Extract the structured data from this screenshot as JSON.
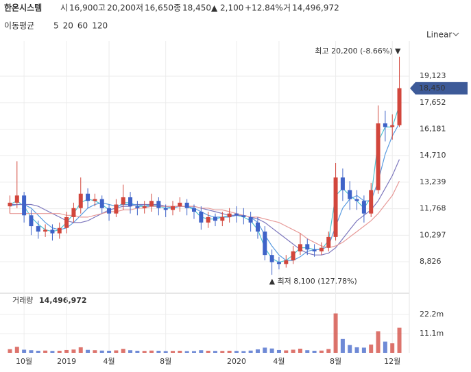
{
  "header": {
    "name": "한온시스템",
    "open_label": "시",
    "open": "16,900",
    "high_label": "고",
    "high": "20,200",
    "low_label": "저",
    "low": "16,650",
    "close_label": "종",
    "close": "18,450",
    "change": "▲ 2,100",
    "change_pct": "+12.84%",
    "volume_label": "거",
    "volume": "14,496,972",
    "ma_label": "이동평균",
    "scale": "Linear"
  },
  "chart_data": [
    {
      "type": "candlestick",
      "x": [
        0,
        1,
        2,
        3,
        4,
        5,
        6,
        7,
        8,
        9,
        10,
        11,
        12,
        13,
        14,
        15,
        16,
        17,
        18,
        19,
        20,
        21,
        22,
        23,
        24,
        25,
        26,
        27,
        28,
        29,
        30,
        31,
        32,
        33,
        34,
        35,
        36,
        37,
        38,
        39,
        40,
        41,
        42,
        43,
        44,
        45,
        46,
        47,
        48,
        49,
        50,
        51,
        52,
        53,
        54,
        55
      ],
      "open": [
        11900,
        12100,
        12500,
        11400,
        10800,
        10500,
        10600,
        10400,
        10700,
        11300,
        11800,
        12600,
        12200,
        12300,
        11800,
        11500,
        12000,
        12400,
        11900,
        11800,
        11900,
        12200,
        11800,
        11700,
        11900,
        12100,
        11800,
        11600,
        11000,
        11300,
        11100,
        11300,
        11500,
        11400,
        11300,
        11000,
        10500,
        9200,
        8800,
        8700,
        8900,
        9400,
        9800,
        9500,
        9400,
        9600,
        10200,
        13500,
        12800,
        12300,
        12200,
        11500,
        12800,
        16500,
        16300,
        16400
      ],
      "high": [
        12500,
        14400,
        12700,
        11700,
        11100,
        10900,
        10900,
        11000,
        11600,
        12100,
        13500,
        12900,
        12600,
        12500,
        12000,
        12300,
        13100,
        12700,
        12200,
        12200,
        12600,
        12400,
        12000,
        12200,
        12400,
        12300,
        12000,
        11900,
        11600,
        11500,
        11600,
        11800,
        11900,
        11800,
        11600,
        11300,
        10800,
        9500,
        9100,
        9200,
        9700,
        10400,
        10100,
        9800,
        9900,
        10500,
        14300,
        14000,
        13300,
        12800,
        12500,
        13200,
        17500,
        17200,
        17000,
        20200
      ],
      "low": [
        11500,
        11800,
        11000,
        10300,
        10100,
        10200,
        10000,
        10100,
        10400,
        11000,
        11500,
        11800,
        11900,
        11500,
        11100,
        11300,
        11700,
        11500,
        11400,
        11500,
        11600,
        11400,
        11300,
        11400,
        11600,
        11400,
        11200,
        10600,
        10700,
        10800,
        10800,
        11000,
        11000,
        10900,
        10500,
        10100,
        8900,
        8100,
        8400,
        8500,
        8700,
        9200,
        9200,
        9100,
        9200,
        9400,
        10000,
        12200,
        11700,
        11700,
        11000,
        11300,
        12600,
        15500,
        15600,
        16300
      ],
      "close": [
        12100,
        12500,
        11400,
        10800,
        10500,
        10600,
        10400,
        10700,
        11300,
        11800,
        12600,
        12200,
        12300,
        11800,
        11500,
        12000,
        12400,
        11900,
        11800,
        11900,
        12200,
        11800,
        11700,
        11900,
        12100,
        11800,
        11600,
        11000,
        11300,
        11100,
        11300,
        11500,
        11400,
        11300,
        11000,
        10500,
        9200,
        8800,
        8700,
        8900,
        9400,
        9800,
        9500,
        9400,
        9600,
        10200,
        13500,
        12800,
        12300,
        12200,
        11500,
        12800,
        16500,
        16300,
        16400,
        18450
      ],
      "up_color": "#d2463c",
      "down_color": "#3f63c8",
      "series": [
        {
          "name": "5",
          "color": "#4fc3d2",
          "values": [
            12000,
            12200,
            11900,
            11300,
            10900,
            10600,
            10500,
            10600,
            11000,
            11500,
            12100,
            12300,
            12200,
            12000,
            11700,
            11800,
            12100,
            12100,
            11900,
            11900,
            12000,
            11900,
            11800,
            11800,
            11900,
            11900,
            11700,
            11300,
            11200,
            11200,
            11300,
            11400,
            11400,
            11300,
            11100,
            10600,
            9600,
            9000,
            8800,
            8900,
            9200,
            9600,
            9600,
            9500,
            9500,
            10000,
            12500,
            12900,
            12500,
            12200,
            11800,
            12400,
            15500,
            16300,
            16300,
            17500
          ]
        },
        {
          "name": "20",
          "color": "#5a9be0",
          "values": [
            11900,
            12000,
            12000,
            11800,
            11400,
            11000,
            10700,
            10600,
            10700,
            11000,
            11400,
            11800,
            12000,
            12100,
            12000,
            11900,
            12000,
            12000,
            12000,
            11900,
            11900,
            11900,
            11900,
            11800,
            11900,
            11900,
            11800,
            11600,
            11400,
            11300,
            11300,
            11300,
            11400,
            11400,
            11300,
            11000,
            10300,
            9700,
            9200,
            8900,
            8900,
            9100,
            9400,
            9500,
            9500,
            9700,
            10800,
            11800,
            12300,
            12500,
            12200,
            12200,
            13300,
            14800,
            15800,
            16500
          ]
        },
        {
          "name": "60",
          "color": "#7d77bd",
          "values": [
            12000,
            12000,
            12000,
            12000,
            11900,
            11700,
            11500,
            11300,
            11100,
            11000,
            11000,
            11100,
            11300,
            11500,
            11700,
            11800,
            11900,
            11900,
            12000,
            12000,
            12000,
            12000,
            11900,
            11900,
            11900,
            11900,
            11900,
            11800,
            11700,
            11600,
            11500,
            11400,
            11400,
            11400,
            11300,
            11200,
            11000,
            10700,
            10400,
            10100,
            9800,
            9500,
            9300,
            9200,
            9200,
            9300,
            9600,
            10100,
            10600,
            11100,
            11400,
            11700,
            12200,
            12900,
            13600,
            14500
          ]
        },
        {
          "name": "120",
          "color": "#e79a98",
          "values": [
            11500,
            11500,
            11500,
            11500,
            11500,
            11500,
            11500,
            11500,
            11400,
            11400,
            11300,
            11300,
            11400,
            11500,
            11600,
            11600,
            11700,
            11700,
            11800,
            11800,
            11900,
            11900,
            11900,
            11900,
            11900,
            11900,
            11900,
            11800,
            11800,
            11700,
            11700,
            11600,
            11500,
            11400,
            11300,
            11300,
            11200,
            11100,
            11000,
            10800,
            10600,
            10400,
            10100,
            9900,
            9700,
            9600,
            9700,
            9900,
            10200,
            10500,
            10800,
            11100,
            11500,
            12000,
            12500,
            13300
          ]
        }
      ],
      "xlim": [
        -1.4,
        56.4
      ],
      "xticks": [
        {
          "value": 2,
          "label": "10월"
        },
        {
          "value": 8,
          "label": "2019"
        },
        {
          "value": 14,
          "label": "4월"
        },
        {
          "value": 22,
          "label": "8월"
        },
        {
          "value": 32,
          "label": "2020"
        },
        {
          "value": 38,
          "label": "4월"
        },
        {
          "value": 46,
          "label": "8월"
        },
        {
          "value": 54,
          "label": "12월"
        }
      ],
      "ylim": [
        7192,
        21066
      ],
      "yticks": [
        {
          "value": 8826,
          "label": "8,826"
        },
        {
          "value": 10297,
          "label": "10,297"
        },
        {
          "value": 11768,
          "label": "11,768"
        },
        {
          "value": 13239,
          "label": "13,239"
        },
        {
          "value": 14710,
          "label": "14,710"
        },
        {
          "value": 16181,
          "label": "16,181"
        },
        {
          "value": 17652,
          "label": "17,652"
        },
        {
          "value": 19123,
          "label": "19,123"
        }
      ],
      "grid": true,
      "high_annotation": "최고 20,200 (-8.66%) ▼",
      "low_annotation": "▲ 최저 8,100 (127.78%)",
      "last_price_label": "18,450"
    },
    {
      "type": "bar",
      "title": "거래량",
      "x": [
        0,
        1,
        2,
        3,
        4,
        5,
        6,
        7,
        8,
        9,
        10,
        11,
        12,
        13,
        14,
        15,
        16,
        17,
        18,
        19,
        20,
        21,
        22,
        23,
        24,
        25,
        26,
        27,
        28,
        29,
        30,
        31,
        32,
        33,
        34,
        35,
        36,
        37,
        38,
        39,
        40,
        41,
        42,
        43,
        44,
        45,
        46,
        47,
        48,
        49,
        50,
        51,
        52,
        53,
        54,
        55
      ],
      "values": [
        2100000,
        3500000,
        1800000,
        1500000,
        1200000,
        1300000,
        1100000,
        1200000,
        1600000,
        1900000,
        3200000,
        1700000,
        1500000,
        1300000,
        1200000,
        1400000,
        2300000,
        1500000,
        1200000,
        1100000,
        1300000,
        1200000,
        1000000,
        1100000,
        1200000,
        1000000,
        1000000,
        1500000,
        1200000,
        1100000,
        1100000,
        1200000,
        1100000,
        1000000,
        1300000,
        2000000,
        3000000,
        2500000,
        1600000,
        1400000,
        1800000,
        2400000,
        1500000,
        1200000,
        1300000,
        2200000,
        22800000,
        8000000,
        4500000,
        3200000,
        3000000,
        4800000,
        12500000,
        6500000,
        5500000,
        14496972
      ],
      "xlim": [
        -1.4,
        56.4
      ],
      "ylim": [
        0,
        34500000
      ],
      "yticks": [
        {
          "value": 11100000,
          "label": "11.1m"
        },
        {
          "value": 22200000,
          "label": "22.2m"
        }
      ],
      "volume_value": "14,496,972"
    }
  ]
}
